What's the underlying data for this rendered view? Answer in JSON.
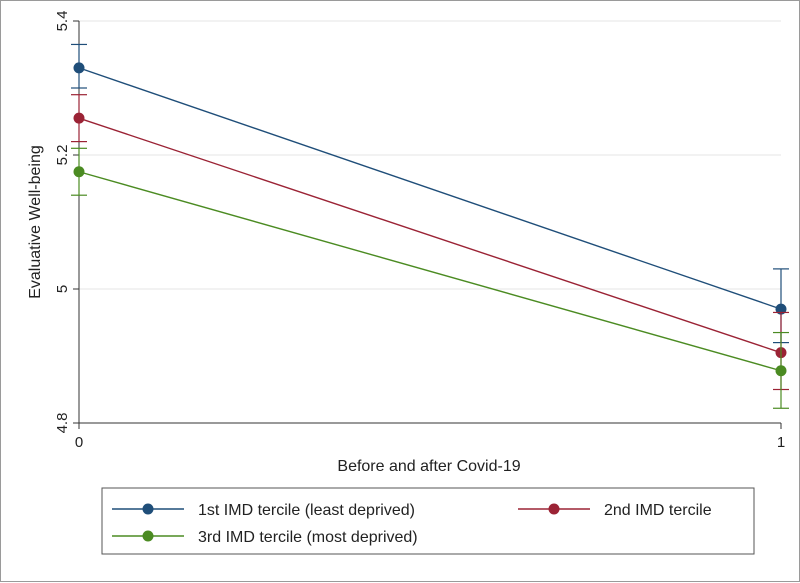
{
  "chart_data": {
    "type": "line",
    "title": "",
    "xlabel": "Before and after Covid-19",
    "ylabel": "Evaluative Well-being",
    "x": [
      0,
      1
    ],
    "xticks": [
      "0",
      "1"
    ],
    "yticks": [
      "4.8",
      "5",
      "5.2",
      "5.4"
    ],
    "ytick_values": [
      4.8,
      5.0,
      5.2,
      5.4
    ],
    "xlim": [
      0,
      1
    ],
    "ylim": [
      4.8,
      5.4
    ],
    "grid": true,
    "legend_position": "bottom",
    "series": [
      {
        "name": "1st IMD tercile (least deprived)",
        "color": "#1f4e79",
        "values": [
          5.33,
          4.97
        ],
        "ci_low": [
          5.3,
          4.92
        ],
        "ci_high": [
          5.365,
          5.03
        ]
      },
      {
        "name": "2nd IMD tercile",
        "color": "#9b2335",
        "values": [
          5.255,
          4.905
        ],
        "ci_low": [
          5.22,
          4.85
        ],
        "ci_high": [
          5.29,
          4.965
        ]
      },
      {
        "name": "3rd IMD tercile (most deprived)",
        "color": "#4b8b22",
        "values": [
          5.175,
          4.878
        ],
        "ci_low": [
          5.14,
          4.822
        ],
        "ci_high": [
          5.21,
          4.935
        ]
      }
    ]
  }
}
